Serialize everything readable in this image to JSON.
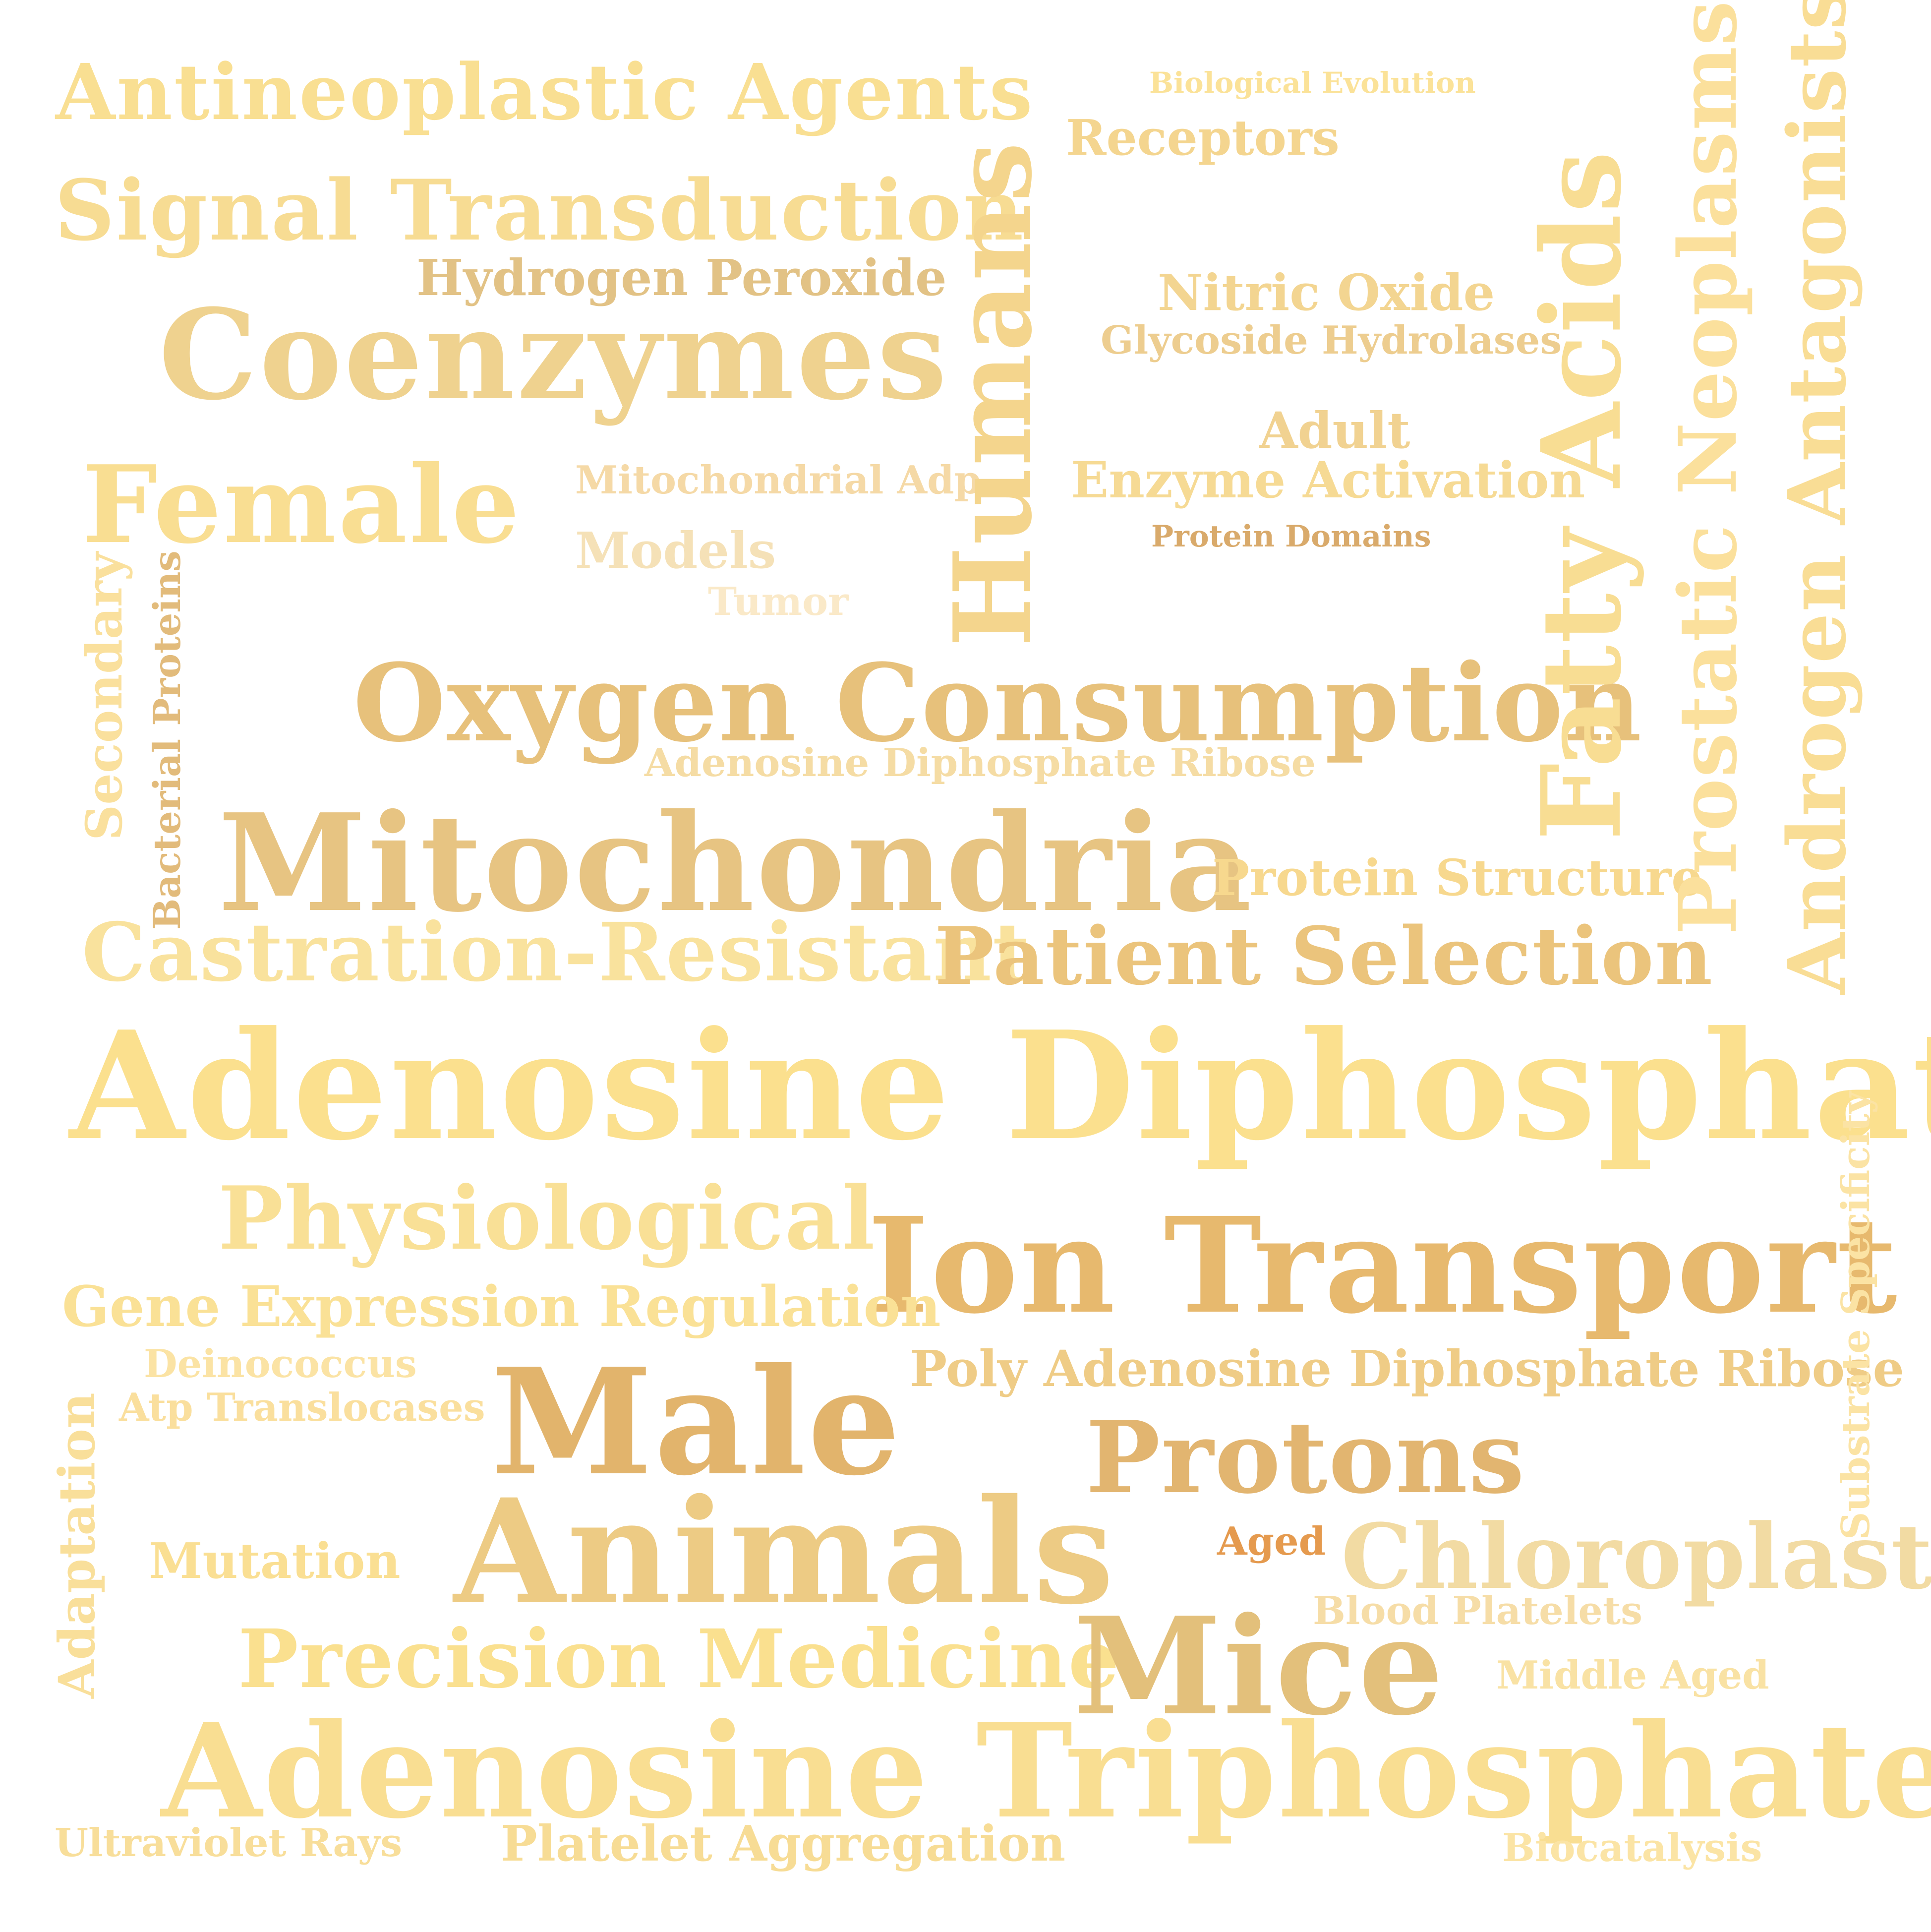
{
  "words": [
    {
      "text": "Antineoplastic Agents",
      "color": "#f9df92"
    },
    {
      "text": "Biological Evolution",
      "color": "#fbe298"
    },
    {
      "text": "Receptors",
      "color": "#f4d58f"
    },
    {
      "text": "Signal Transduction",
      "color": "#f7dc93"
    },
    {
      "text": "Hydrogen Peroxide",
      "color": "#e2c285"
    },
    {
      "text": "Coenzymes",
      "color": "#efd28f"
    },
    {
      "text": "Nitric Oxide",
      "color": "#f3d591"
    },
    {
      "text": "Glycoside Hydrolases",
      "color": "#edcd8f"
    },
    {
      "text": "Adult",
      "color": "#f1d291"
    },
    {
      "text": "Female",
      "color": "#f9de92"
    },
    {
      "text": "Mitochondrial Adp",
      "color": "#f5d9a6"
    },
    {
      "text": "Enzyme Activation",
      "color": "#f6da94"
    },
    {
      "text": "Protein Domains",
      "color": "#d9aa6b"
    },
    {
      "text": "Models",
      "color": "#f5e1b7"
    },
    {
      "text": "Tumor",
      "color": "#fae9c8"
    },
    {
      "text": "Oxygen Consumption",
      "color": "#e7c17b"
    },
    {
      "text": "Adenosine Diphosphate Ribose",
      "color": "#f5dca4"
    },
    {
      "text": "Mitochondria",
      "color": "#e7c482"
    },
    {
      "text": "Protein Structure",
      "color": "#f7d88e"
    },
    {
      "text": "Castration-Resistant",
      "color": "#f9e29d"
    },
    {
      "text": "Patient Selection",
      "color": "#ebc47c"
    },
    {
      "text": "Adenosine Diphosphate",
      "color": "#fbe08e"
    },
    {
      "text": "Physiological",
      "color": "#f9e096"
    },
    {
      "text": "Ion Transport",
      "color": "#e7b96e"
    },
    {
      "text": "Gene Expression Regulation",
      "color": "#fae196"
    },
    {
      "text": "Poly Adenosine Diphosphate Ribose",
      "color": "#efcc86"
    },
    {
      "text": "Deinococcus",
      "color": "#fbe3a4"
    },
    {
      "text": "Atp Translocases",
      "color": "#fadf9d"
    },
    {
      "text": "Male",
      "color": "#e2b46c"
    },
    {
      "text": "Protons",
      "color": "#e2b570"
    },
    {
      "text": "Aged",
      "color": "#e59a4e"
    },
    {
      "text": "Chloroplasts",
      "color": "#f2dba3"
    },
    {
      "text": "Mutation",
      "color": "#fadf93"
    },
    {
      "text": "Animals",
      "color": "#edcb84"
    },
    {
      "text": "Blood Platelets",
      "color": "#f6dda7"
    },
    {
      "text": "Precision Medicine",
      "color": "#fae08f"
    },
    {
      "text": "Mice",
      "color": "#e3c07b"
    },
    {
      "text": "Middle Aged",
      "color": "#f9e2a4"
    },
    {
      "text": "Adenosine Triphosphate",
      "color": "#f9de92"
    },
    {
      "text": "Ultraviolet Rays",
      "color": "#f8de9a"
    },
    {
      "text": "Platelet Aggregation",
      "color": "#f7dc95"
    },
    {
      "text": "Biocatalysis",
      "color": "#fbe4a5"
    },
    {
      "text": "Humans",
      "color": "#f4d58d"
    },
    {
      "text": "Fatty Acids",
      "color": "#f8dd93"
    },
    {
      "text": "Prostatic Neoplasms",
      "color": "#fbe09c"
    },
    {
      "text": "Androgen Antagonists",
      "color": "#f9dd95"
    },
    {
      "text": "Secondary",
      "color": "#fae09d"
    },
    {
      "text": "Bacterial Proteins",
      "color": "#e2bb7b"
    },
    {
      "text": "Substrate Specificity",
      "color": "#fbe3a4"
    },
    {
      "text": "Adaptation",
      "color": "#f9df9a"
    }
  ]
}
